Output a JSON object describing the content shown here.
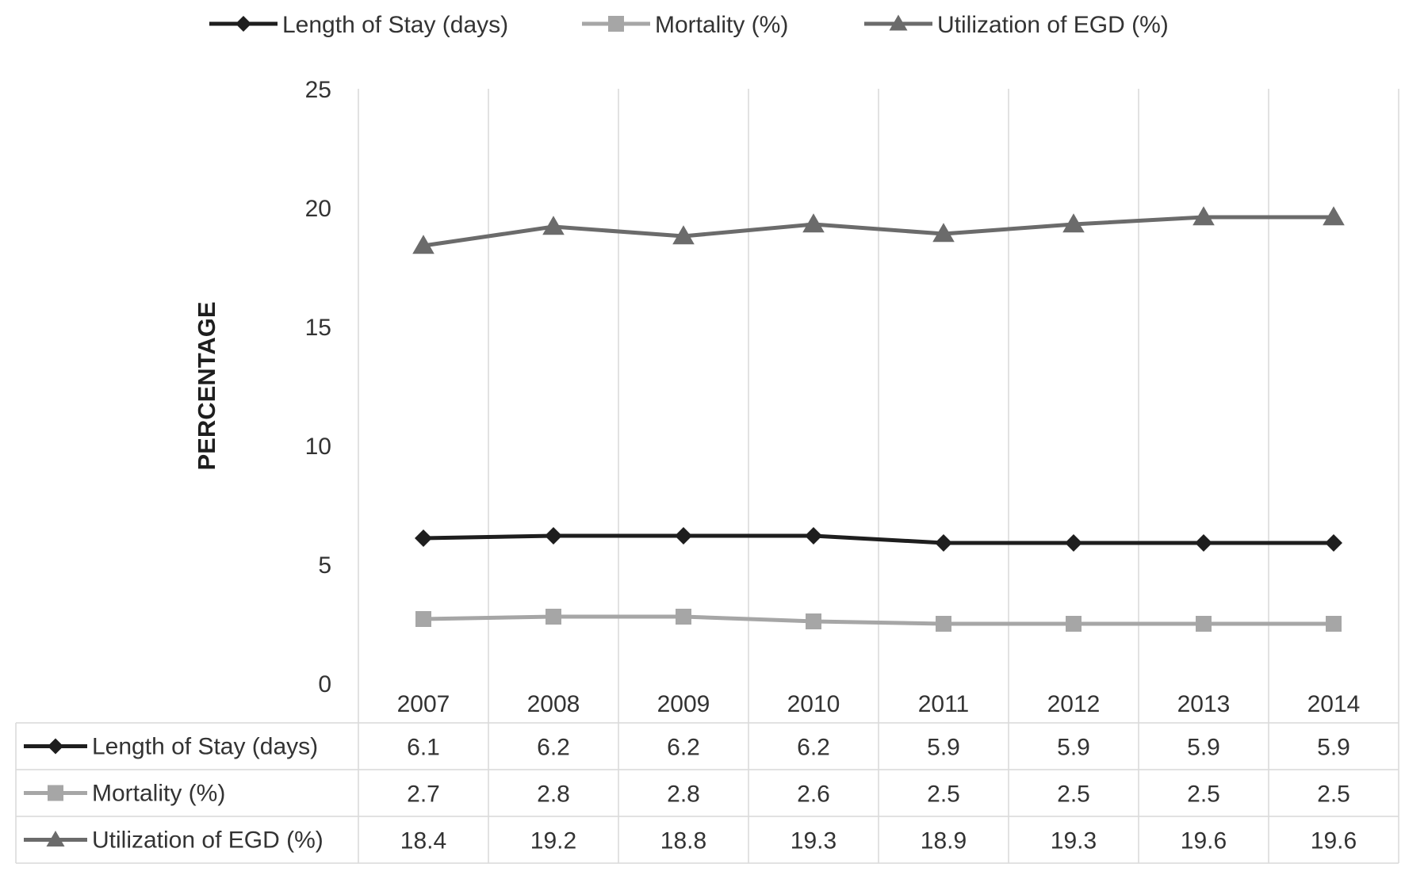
{
  "chart_data": {
    "type": "line",
    "title": "",
    "xlabel": "",
    "ylabel": "PERCENTAGE",
    "ylim": [
      0,
      25
    ],
    "y_ticks": [
      0,
      5,
      10,
      15,
      20,
      25
    ],
    "grid": "vertical",
    "legend_position": "top",
    "data_table": true,
    "categories": [
      "2007",
      "2008",
      "2009",
      "2010",
      "2011",
      "2012",
      "2013",
      "2014"
    ],
    "series": [
      {
        "name": "Length of Stay (days)",
        "marker": "diamond",
        "color": "#1e1e1e",
        "values": [
          6.1,
          6.2,
          6.2,
          6.2,
          5.9,
          5.9,
          5.9,
          5.9
        ]
      },
      {
        "name": "Mortality (%)",
        "marker": "square",
        "color": "#a6a6a6",
        "values": [
          2.7,
          2.8,
          2.8,
          2.6,
          2.5,
          2.5,
          2.5,
          2.5
        ]
      },
      {
        "name": "Utilization of EGD (%)",
        "marker": "triangle",
        "color": "#6b6b6b",
        "values": [
          18.4,
          19.2,
          18.8,
          19.3,
          18.9,
          19.3,
          19.6,
          19.6
        ]
      }
    ]
  }
}
